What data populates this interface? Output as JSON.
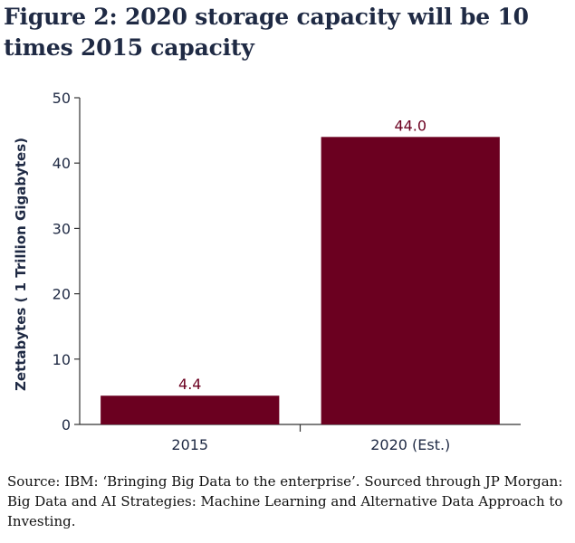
{
  "figure": {
    "title": "Figure 2: 2020 storage capacity will be 10 times 2015 capacity",
    "source": "Source: IBM: ‘Bringing Big Data to the enterprise’. Sourced through JP Morgan: Big Data and AI Strategies: Machine Learning and Alternative Data Approach to Investing."
  },
  "chart_data": {
    "type": "bar",
    "title": "Figure 2: 2020 storage capacity will be 10 times 2015 capacity",
    "xlabel": "",
    "ylabel": "Zettabytes ( 1 Trillion Gigabytes)",
    "categories": [
      "2015",
      "2020 (Est.)"
    ],
    "values": [
      4.4,
      44.0
    ],
    "data_labels": [
      "4.4",
      "44.0"
    ],
    "ylim": [
      0,
      50
    ],
    "yticks": [
      0,
      10,
      20,
      30,
      40,
      50
    ],
    "grid": false,
    "legend": "none"
  },
  "colors": {
    "bar": "#6b0020",
    "label": "#6b0020",
    "axis_text": "#1f2a44",
    "axis_line": "#333333"
  }
}
